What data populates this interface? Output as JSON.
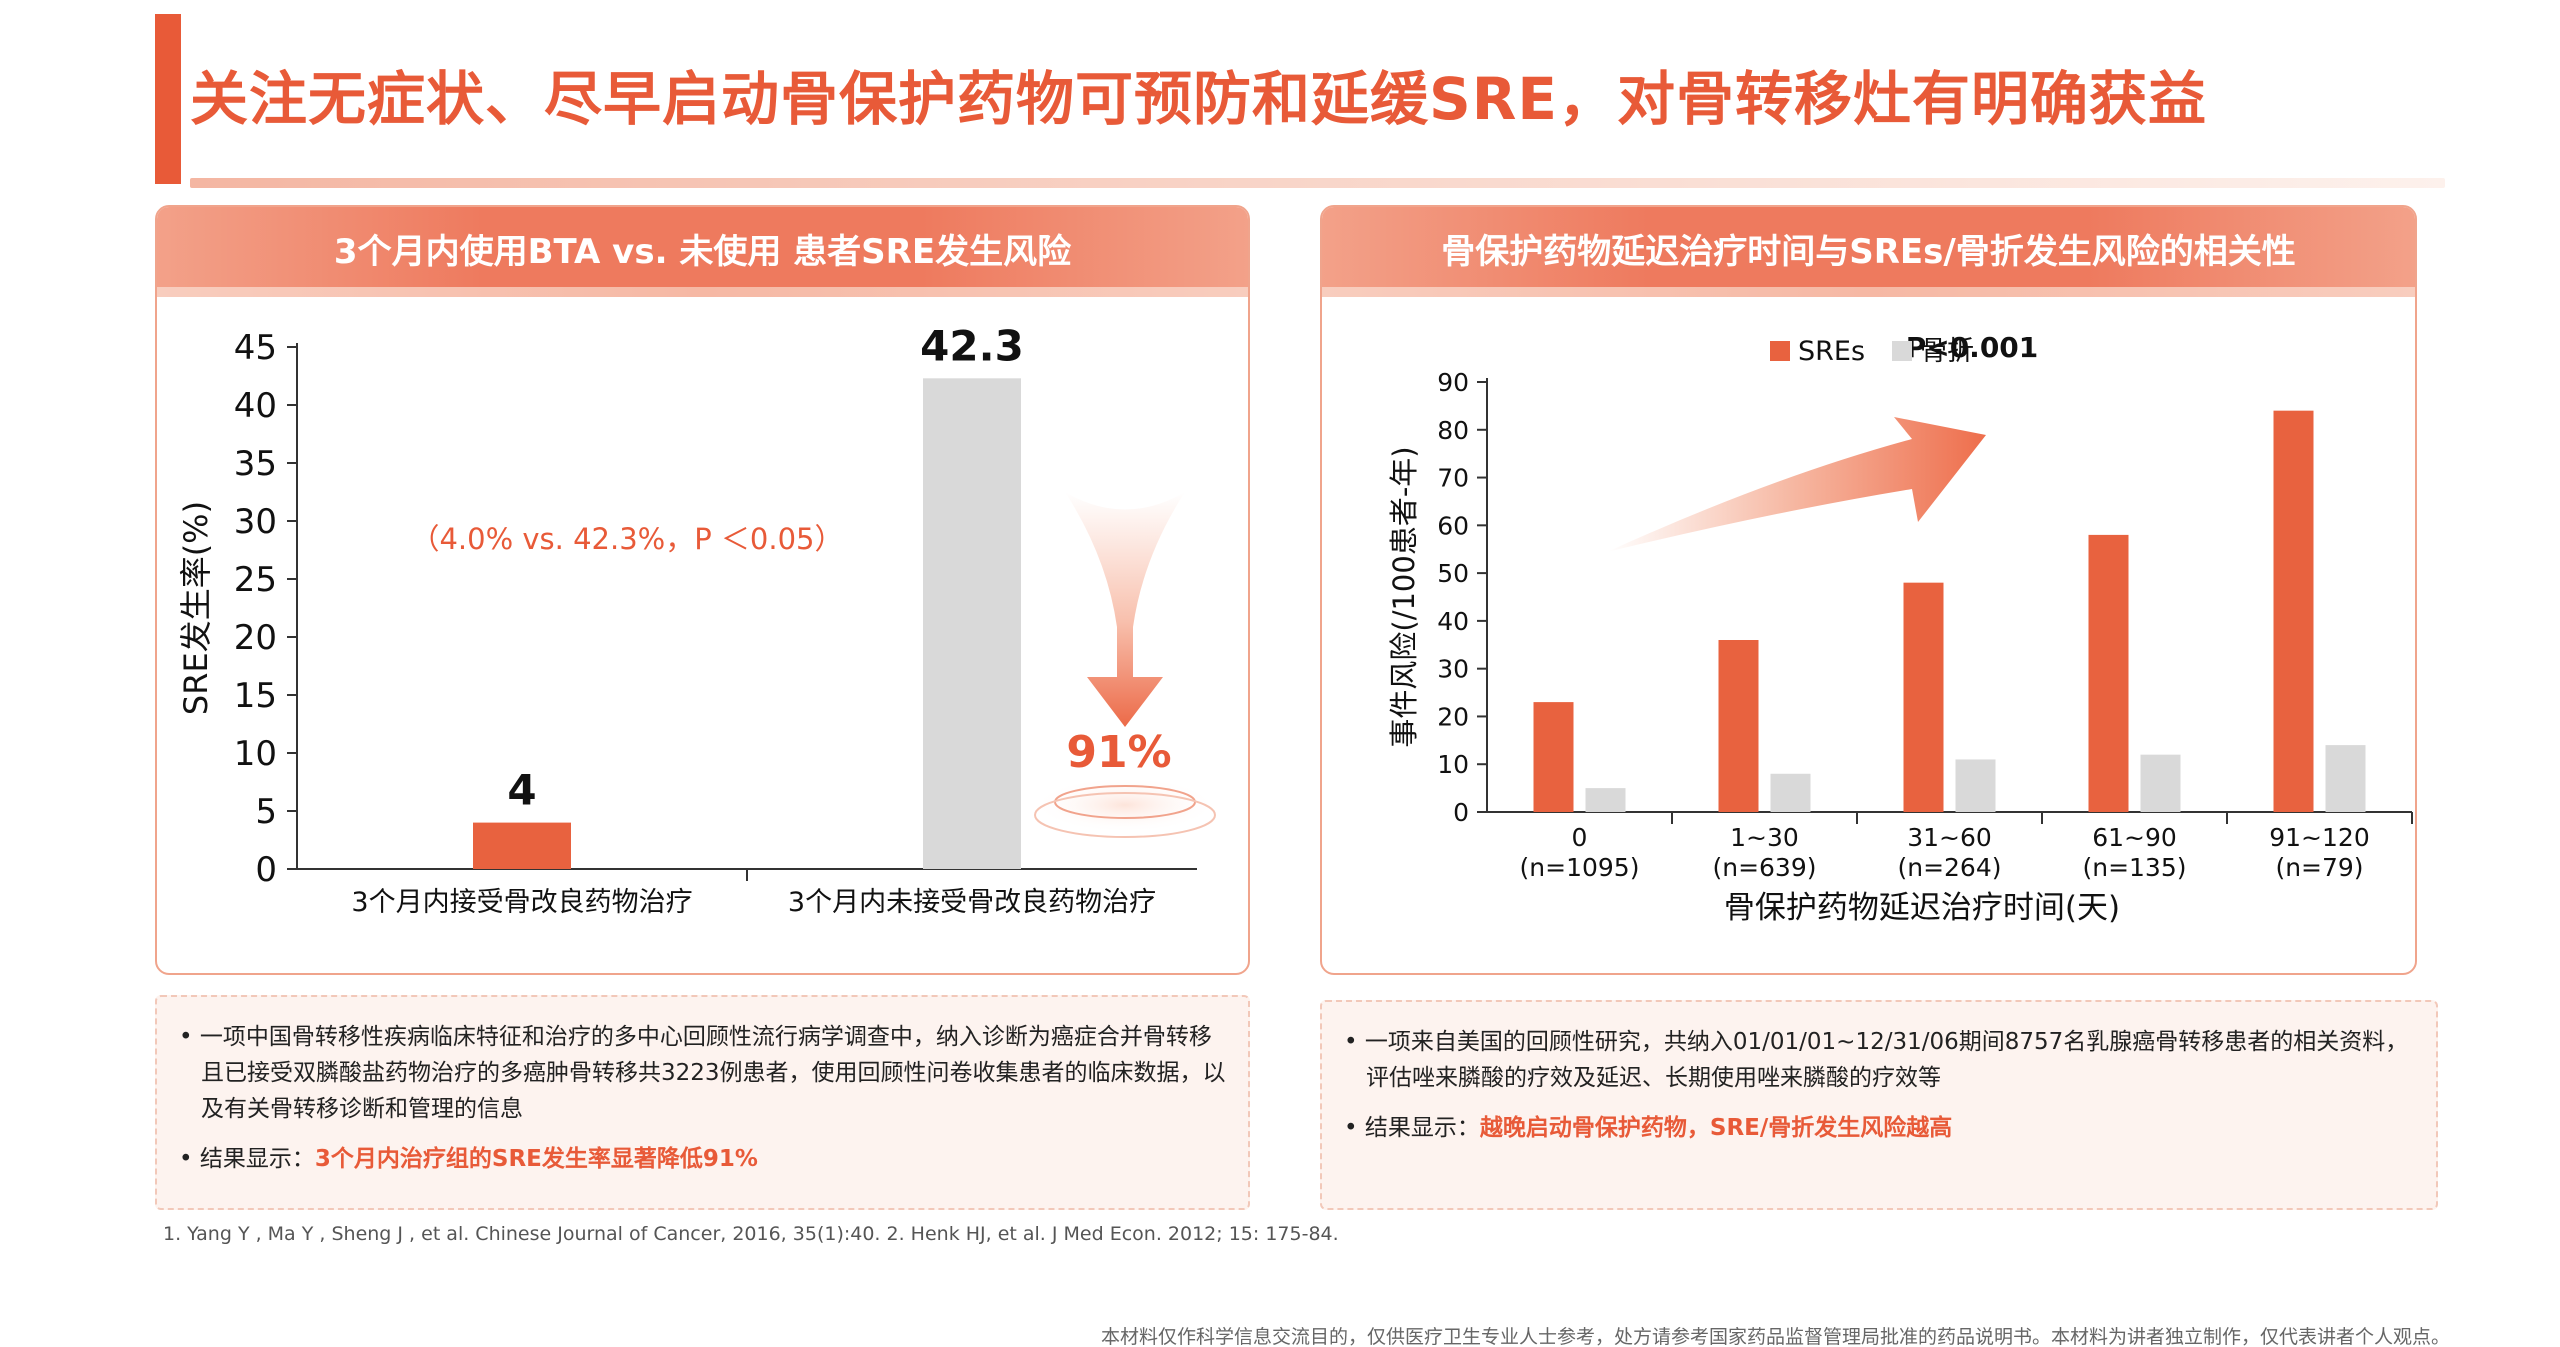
{
  "page_title": "关注无症状、尽早启动骨保护药物可预防和延缓SRE，对骨转移灶有明确获益",
  "colors": {
    "accent": "#e85a38",
    "bar_primary": "#e8623f",
    "bar_secondary": "#d9d9d9"
  },
  "left_panel": {
    "header": "3个月内使用BTA vs. 未使用 患者SRE发生风险",
    "stat_annotation": "（4.0% vs. 42.3%，P ＜0.05）",
    "reduction_label": "91%",
    "note": {
      "bullet1": "• 一项中国骨转移性疾病临床特征和治疗的多中心回顾性流行病学调查中，纳入诊断为癌症合并骨转移且已接受双膦酸盐药物治疗的多癌肿骨转移共3223例患者，使用回顾性问卷收集患者的临床数据，以及有关骨转移诊断和管理的信息",
      "result_prefix": "• 结果显示：",
      "result_highlight": "3个月内治疗组的SRE发生率显著降低91%"
    }
  },
  "right_panel": {
    "header": "骨保护药物延迟治疗时间与SREs/骨折发生风险的相关性",
    "p_value": "P<0.001",
    "note": {
      "bullet1": "• 一项来自美国的回顾性研究，共纳入01/01/01~12/31/06期间8757名乳腺癌骨转移患者的相关资料，评估唑来膦酸的疗效及延迟、长期使用唑来膦酸的疗效等",
      "result_prefix": "• 结果显示：",
      "result_highlight": "越晚启动骨保护药物，SRE/骨折发生风险越高"
    }
  },
  "chart_data": [
    {
      "type": "bar",
      "categories": [
        "3个月内接受骨改良药物治疗",
        "3个月内未接受骨改良药物治疗"
      ],
      "values": [
        4,
        42.3
      ],
      "value_labels": [
        "4",
        "42.3"
      ],
      "ylabel": "SRE发生率(%)",
      "ylim": [
        0,
        45
      ],
      "yticks": [
        0,
        5,
        10,
        15,
        20,
        25,
        30,
        35,
        40,
        45
      ],
      "bar_colors": [
        "#e8623f",
        "#d9d9d9"
      ]
    },
    {
      "type": "bar",
      "categories": [
        "0",
        "1~30",
        "31~60",
        "61~90",
        "91~120"
      ],
      "category_sublabels": [
        "(n=1095)",
        "(n=639)",
        "(n=264)",
        "(n=135)",
        "(n=79)"
      ],
      "series": [
        {
          "name": "SREs",
          "values": [
            23,
            36,
            48,
            58,
            84
          ],
          "color": "#e8623f"
        },
        {
          "name": "骨折",
          "values": [
            5,
            8,
            11,
            12,
            14
          ],
          "color": "#d9d9d9"
        }
      ],
      "xlabel": "骨保护药物延迟治疗时间(天)",
      "ylabel": "事件风险(/100患者-年)",
      "ylim": [
        0,
        90
      ],
      "yticks": [
        0,
        10,
        20,
        30,
        40,
        50,
        60,
        70,
        80,
        90
      ],
      "legend": "top"
    }
  ],
  "references": "1. Yang Y , Ma Y , Sheng J , et al. Chinese Journal of Cancer, 2016, 35(1):40.  2. Henk HJ, et al. J Med Econ. 2012; 15: 175-84.",
  "disclaimer": "本材料仅作科学信息交流目的，仅供医疗卫生专业人士参考，处方请参考国家药品监督管理局批准的药品说明书。本材料为讲者独立制作，仅代表讲者个人观点。"
}
